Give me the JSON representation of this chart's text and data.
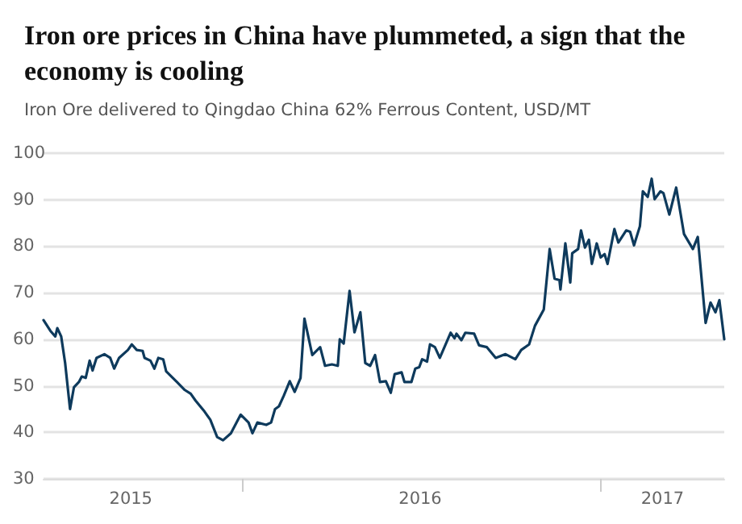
{
  "chart_data": {
    "type": "line",
    "title": "Iron ore prices in China have plummeted, a sign that the economy is cooling",
    "subtitle": "Iron Ore delivered to Qingdao China 62% Ferrous Content, USD/MT",
    "x": [
      "2015-06-13",
      "2015-06-20",
      "2015-06-25",
      "2015-06-27",
      "2015-07-01",
      "2015-07-05",
      "2015-07-10",
      "2015-07-14",
      "2015-07-19",
      "2015-07-22",
      "2015-07-26",
      "2015-07-30",
      "2015-08-02",
      "2015-08-06",
      "2015-08-14",
      "2015-08-20",
      "2015-08-24",
      "2015-08-29",
      "2015-09-07",
      "2015-09-11",
      "2015-09-16",
      "2015-09-22",
      "2015-09-24",
      "2015-09-30",
      "2015-10-04",
      "2015-10-08",
      "2015-10-13",
      "2015-10-16",
      "2015-10-27",
      "2015-11-04",
      "2015-11-10",
      "2015-11-15",
      "2015-11-24",
      "2015-11-30",
      "2015-12-07",
      "2015-12-13",
      "2015-12-21",
      "2015-12-31",
      "2016-01-08",
      "2016-01-12",
      "2016-01-17",
      "2016-01-26",
      "2016-01-31",
      "2016-02-04",
      "2016-02-08",
      "2016-02-13",
      "2016-02-19",
      "2016-02-24",
      "2016-03-01",
      "2016-03-05",
      "2016-03-13",
      "2016-03-21",
      "2016-03-26",
      "2016-04-02",
      "2016-04-08",
      "2016-04-10",
      "2016-04-14",
      "2016-04-20",
      "2016-04-25",
      "2016-05-01",
      "2016-05-06",
      "2016-05-11",
      "2016-05-16",
      "2016-05-21",
      "2016-05-27",
      "2016-06-01",
      "2016-06-05",
      "2016-06-12",
      "2016-06-15",
      "2016-06-22",
      "2016-06-26",
      "2016-06-30",
      "2016-07-03",
      "2016-07-08",
      "2016-07-11",
      "2016-07-16",
      "2016-07-21",
      "2016-08-01",
      "2016-08-05",
      "2016-08-07",
      "2016-08-12",
      "2016-08-16",
      "2016-08-25",
      "2016-08-30",
      "2016-09-07",
      "2016-09-16",
      "2016-09-26",
      "2016-10-06",
      "2016-10-12",
      "2016-10-20",
      "2016-10-26",
      "2016-11-04",
      "2016-11-10",
      "2016-11-15",
      "2016-11-20",
      "2016-11-21",
      "2016-11-26",
      "2016-12-01",
      "2016-12-03",
      "2016-12-09",
      "2016-12-12",
      "2016-12-16",
      "2016-12-20",
      "2016-12-23",
      "2016-12-28",
      "2017-01-01",
      "2017-01-05",
      "2017-01-08",
      "2017-01-15",
      "2017-01-19",
      "2017-01-27",
      "2017-01-31",
      "2017-02-04",
      "2017-02-10",
      "2017-02-13",
      "2017-02-18",
      "2017-02-22",
      "2017-02-25",
      "2017-03-03",
      "2017-03-06",
      "2017-03-12",
      "2017-03-19",
      "2017-03-27",
      "2017-04-05",
      "2017-04-10",
      "2017-04-18",
      "2017-04-23",
      "2017-04-28",
      "2017-05-02",
      "2017-05-07"
    ],
    "series": [
      {
        "color": "#0e3a5c",
        "values": [
          64.1,
          61.8,
          60.6,
          62.4,
          60.6,
          54.9,
          45.0,
          49.7,
          50.8,
          52.0,
          51.7,
          55.4,
          53.3,
          56.0,
          56.8,
          56.0,
          53.7,
          56.0,
          57.7,
          58.9,
          57.7,
          57.5,
          56.0,
          55.4,
          53.7,
          56.0,
          55.7,
          53.1,
          50.8,
          49.1,
          48.3,
          46.8,
          44.5,
          42.7,
          39.0,
          38.3,
          39.8,
          43.8,
          42.1,
          39.8,
          42.1,
          41.6,
          42.1,
          45.0,
          45.6,
          47.9,
          51.0,
          48.7,
          51.7,
          64.4,
          56.6,
          58.3,
          54.3,
          54.6,
          54.3,
          60.0,
          59.1,
          70.4,
          61.5,
          65.8,
          54.9,
          54.3,
          56.6,
          50.8,
          51.0,
          48.5,
          52.5,
          52.9,
          50.8,
          50.8,
          53.7,
          54.0,
          55.7,
          55.2,
          58.9,
          58.3,
          56.0,
          61.4,
          60.2,
          61.2,
          59.8,
          61.4,
          61.2,
          58.7,
          58.3,
          56.0,
          56.8,
          55.7,
          57.7,
          58.9,
          62.9,
          66.4,
          79.4,
          73.0,
          72.7,
          70.7,
          80.6,
          72.2,
          78.5,
          79.4,
          83.4,
          79.7,
          81.4,
          76.2,
          80.6,
          77.6,
          78.3,
          76.2,
          83.7,
          80.8,
          83.4,
          83.1,
          80.2,
          84.3,
          91.8,
          90.6,
          94.5,
          90.1,
          91.8,
          91.4,
          86.8,
          92.6,
          82.6,
          79.4,
          82.0,
          63.5,
          67.9,
          65.8,
          68.4,
          60.0
        ]
      }
    ],
    "xlim": [
      "2015-06-13",
      "2017-05-07"
    ],
    "xticks": [
      {
        "value": "2015-09-10",
        "label": "2015"
      },
      {
        "value": "2016-01-01",
        "label": null
      },
      {
        "value": "2016-07-01",
        "label": "2016"
      },
      {
        "value": "2017-01-01",
        "label": null
      },
      {
        "value": "2017-03-05",
        "label": "2017"
      }
    ],
    "ylim": [
      30,
      100
    ],
    "yticks": [
      30,
      40,
      50,
      60,
      70,
      80,
      90,
      100
    ],
    "grid": "y",
    "marker": "none",
    "line_style": "solid"
  }
}
